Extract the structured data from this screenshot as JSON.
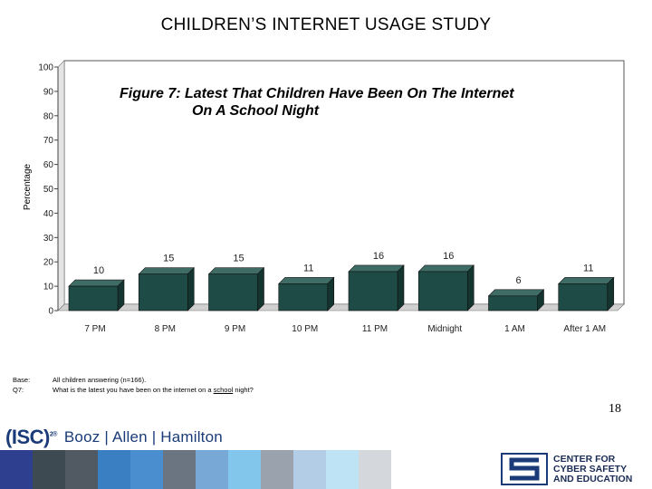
{
  "slide": {
    "title": "CHILDREN’S INTERNET USAGE STUDY",
    "page_number": "18"
  },
  "base_note": {
    "base_label": "Base:",
    "base_text": "All children answering (n=166).",
    "q_label": "Q7:",
    "q_text_before": "What is the latest you have been on the internet on a ",
    "q_text_underlined": "school",
    "q_text_after": " night?"
  },
  "footer": {
    "isc_text": "(ISC)",
    "isc_sup": "2®",
    "booz_text": "Booz | Allen | Hamilton",
    "ccse_lines": [
      "CENTER FOR",
      "CYBER SAFETY",
      "AND EDUCATION"
    ],
    "strip_colors": [
      "#2e3f8f",
      "#3d4a52",
      "#515a63",
      "#3a7fc1",
      "#4a8ed0",
      "#6b7582",
      "#78a9d6",
      "#83c6ec",
      "#9aa3ad",
      "#b3cde6",
      "#bde3f4",
      "#d4d8dc"
    ]
  },
  "chart_data": {
    "type": "bar",
    "title_line1": "Figure 7: Latest That Children Have Been On The Internet",
    "title_line2": "On A School Night",
    "ylabel": "Percentage",
    "xlabel": "",
    "ylim": [
      0,
      100
    ],
    "yticks": [
      0,
      10,
      20,
      30,
      40,
      50,
      60,
      70,
      80,
      90,
      100
    ],
    "categories": [
      "7 PM",
      "8 PM",
      "9 PM",
      "10 PM",
      "11 PM",
      "Midnight",
      "1 AM",
      "After 1 AM"
    ],
    "values": [
      10,
      15,
      15,
      11,
      16,
      16,
      6,
      11
    ],
    "bar_color": "#1e4b45",
    "grid": false,
    "legend": "none"
  }
}
